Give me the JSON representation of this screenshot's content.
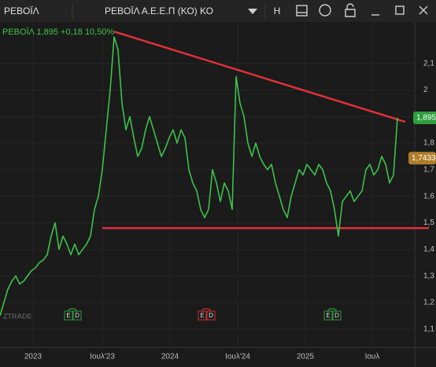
{
  "toolbar": {
    "symbol": "ΡΕΒΟΪΛ",
    "instrument": "ΡΕΒΟΪΛ Α.Ε.Ε.Π (ΚΟ) ΚΟ",
    "mode": "H"
  },
  "chart_data": {
    "type": "line",
    "legend": {
      "name": "ΡΕΒΟΪΛ",
      "last": "1,895",
      "change": "+0,18",
      "change_pct": "10,50%"
    },
    "series": [
      {
        "name": "ΡΕΒΟΪΛ",
        "color": "#3cc24a",
        "values": [
          1.15,
          1.2,
          1.25,
          1.28,
          1.3,
          1.27,
          1.28,
          1.3,
          1.32,
          1.33,
          1.35,
          1.36,
          1.38,
          1.45,
          1.5,
          1.4,
          1.45,
          1.42,
          1.38,
          1.42,
          1.38,
          1.4,
          1.42,
          1.45,
          1.55,
          1.6,
          1.7,
          1.85,
          2.0,
          2.2,
          2.15,
          1.95,
          1.85,
          1.9,
          1.82,
          1.75,
          1.78,
          1.85,
          1.9,
          1.85,
          1.8,
          1.75,
          1.78,
          1.82,
          1.85,
          1.8,
          1.85,
          1.82,
          1.7,
          1.65,
          1.62,
          1.55,
          1.52,
          1.55,
          1.7,
          1.65,
          1.58,
          1.65,
          1.62,
          1.55,
          2.05,
          1.95,
          1.9,
          1.8,
          1.75,
          1.8,
          1.75,
          1.72,
          1.7,
          1.72,
          1.65,
          1.6,
          1.55,
          1.52,
          1.6,
          1.65,
          1.7,
          1.68,
          1.72,
          1.7,
          1.68,
          1.72,
          1.7,
          1.65,
          1.62,
          1.55,
          1.45,
          1.58,
          1.6,
          1.62,
          1.58,
          1.6,
          1.62,
          1.7,
          1.72,
          1.68,
          1.7,
          1.75,
          1.72,
          1.65,
          1.68,
          1.895
        ]
      }
    ],
    "xlim": [
      0,
      101
    ],
    "xticks": [
      {
        "value": 8.4,
        "label": "2023"
      },
      {
        "value": 26,
        "label": "Ιουλ'23"
      },
      {
        "value": 43.2,
        "label": "2024"
      },
      {
        "value": 60.4,
        "label": "Ιουλ'24"
      },
      {
        "value": 77.6,
        "label": "2025"
      },
      {
        "value": 94.6,
        "label": "Ιουλ"
      }
    ],
    "ylim": [
      1.04,
      2.25
    ],
    "yticks": [
      {
        "value": 2.1,
        "label": "2,1"
      },
      2,
      {
        "value": 1.9,
        "label": "1,9"
      },
      {
        "value": 1.8,
        "label": "1,8"
      },
      {
        "value": 1.7,
        "label": "1,7"
      },
      {
        "value": 1.6,
        "label": "1,6"
      },
      {
        "value": 1.5,
        "label": "1,5"
      },
      {
        "value": 1.4,
        "label": "1,4"
      },
      {
        "value": 1.3,
        "label": "1,3"
      },
      {
        "value": 1.2,
        "label": "1,2"
      },
      {
        "value": 1.1,
        "label": "1,1"
      }
    ],
    "grid": true,
    "price_tags": [
      {
        "value": 1.895,
        "label": "1,895",
        "color": "#2e9e3e"
      },
      {
        "value": 1.7433,
        "label": "1,7433",
        "color": "#b07e2a"
      }
    ],
    "trendlines": [
      {
        "start": [
          29,
          2.22
        ],
        "end": [
          103,
          1.88
        ],
        "color": "#e0303a"
      },
      {
        "start": [
          26,
          1.48
        ],
        "end": [
          109,
          1.48
        ],
        "color": "#e0303a"
      }
    ],
    "events": [
      {
        "x": 19,
        "color": "#2e9e3e",
        "texts": [
          "E",
          "D"
        ]
      },
      {
        "x": 53,
        "color": "#d03030",
        "texts": [
          "E",
          "D"
        ]
      },
      {
        "x": 85,
        "color": "#2e9e3e",
        "texts": [
          "E",
          "D"
        ]
      }
    ],
    "watermark": "ZTRADE"
  }
}
